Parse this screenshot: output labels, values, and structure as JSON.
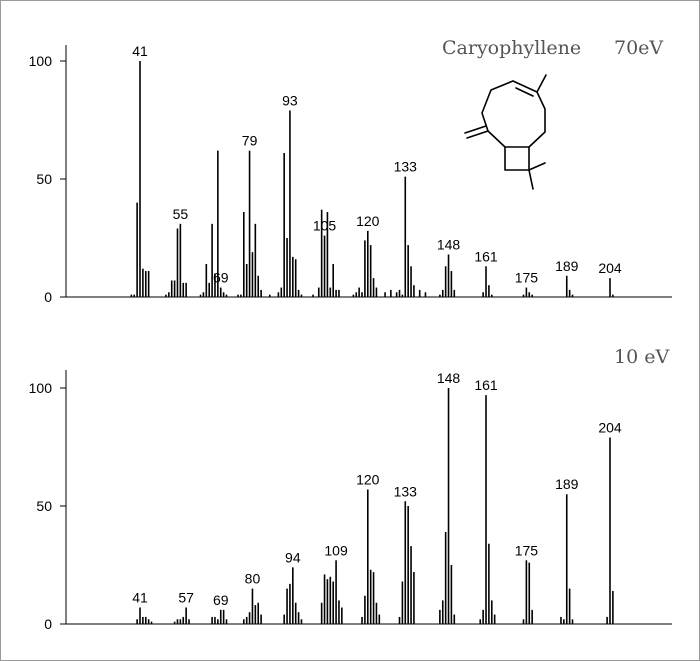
{
  "chart_data": [
    {
      "type": "bar",
      "title": "Caryophyllene",
      "subtitle": "70eV",
      "xlabel": "",
      "ylabel": "",
      "xlim": [
        20,
        212
      ],
      "ylim": [
        0,
        100
      ],
      "yticks": [
        0,
        50,
        100
      ],
      "grid": false,
      "labeled_peaks": [
        {
          "mz": 41,
          "label": "41"
        },
        {
          "mz": 55,
          "label": "55"
        },
        {
          "mz": 69,
          "label": "69"
        },
        {
          "mz": 79,
          "label": "79"
        },
        {
          "mz": 93,
          "label": "93"
        },
        {
          "mz": 105,
          "label": "105"
        },
        {
          "mz": 120,
          "label": "120"
        },
        {
          "mz": 133,
          "label": "133"
        },
        {
          "mz": 148,
          "label": "148"
        },
        {
          "mz": 161,
          "label": "161"
        },
        {
          "mz": 175,
          "label": "175"
        },
        {
          "mz": 189,
          "label": "189"
        },
        {
          "mz": 204,
          "label": "204"
        }
      ],
      "x": [
        38,
        39,
        40,
        41,
        42,
        43,
        44,
        50,
        51,
        52,
        53,
        54,
        55,
        56,
        57,
        62,
        63,
        64,
        65,
        66,
        67,
        68,
        69,
        70,
        71,
        75,
        76,
        77,
        78,
        79,
        80,
        81,
        82,
        83,
        86,
        89,
        90,
        91,
        92,
        93,
        94,
        95,
        96,
        97,
        101,
        103,
        104,
        105,
        106,
        107,
        108,
        109,
        110,
        115,
        116,
        117,
        118,
        119,
        120,
        121,
        122,
        123,
        126,
        128,
        130,
        131,
        132,
        133,
        134,
        135,
        136,
        138,
        140,
        145,
        146,
        147,
        148,
        149,
        150,
        160,
        161,
        162,
        163,
        174,
        175,
        176,
        177,
        189,
        190,
        191,
        204,
        205
      ],
      "y": [
        1,
        1,
        40,
        100,
        12,
        11,
        11,
        1,
        2,
        7,
        7,
        29,
        31,
        6,
        6,
        1,
        2,
        14,
        6,
        31,
        10,
        62,
        4,
        2,
        1,
        1,
        1,
        36,
        14,
        62,
        19,
        31,
        9,
        3,
        1,
        2,
        4,
        61,
        25,
        79,
        17,
        16,
        3,
        1,
        1,
        4,
        37,
        26,
        36,
        4,
        14,
        3,
        3,
        1,
        2,
        4,
        2,
        24,
        28,
        22,
        8,
        4,
        2,
        3,
        2,
        3,
        1,
        51,
        22,
        13,
        5,
        3,
        2,
        1,
        3,
        13,
        18,
        11,
        3,
        2,
        13,
        5,
        1,
        1,
        4,
        2,
        1,
        9,
        3,
        1,
        8,
        1
      ]
    },
    {
      "type": "bar",
      "title": "",
      "subtitle": "10 eV",
      "xlabel": "",
      "ylabel": "",
      "xlim": [
        20,
        212
      ],
      "ylim": [
        0,
        100
      ],
      "yticks": [
        0,
        50,
        100
      ],
      "grid": false,
      "labeled_peaks": [
        {
          "mz": 41,
          "label": "41"
        },
        {
          "mz": 57,
          "label": "57"
        },
        {
          "mz": 69,
          "label": "69"
        },
        {
          "mz": 80,
          "label": "80"
        },
        {
          "mz": 94,
          "label": "94"
        },
        {
          "mz": 109,
          "label": "109"
        },
        {
          "mz": 120,
          "label": "120"
        },
        {
          "mz": 133,
          "label": "133"
        },
        {
          "mz": 148,
          "label": "148"
        },
        {
          "mz": 161,
          "label": "161"
        },
        {
          "mz": 175,
          "label": "175"
        },
        {
          "mz": 189,
          "label": "189"
        },
        {
          "mz": 204,
          "label": "204"
        }
      ],
      "x": [
        40,
        41,
        42,
        43,
        44,
        45,
        53,
        54,
        55,
        56,
        57,
        58,
        66,
        67,
        68,
        69,
        70,
        71,
        77,
        78,
        79,
        80,
        81,
        82,
        83,
        91,
        92,
        93,
        94,
        95,
        96,
        97,
        104,
        105,
        106,
        107,
        108,
        109,
        110,
        111,
        118,
        119,
        120,
        121,
        122,
        123,
        124,
        131,
        132,
        133,
        134,
        135,
        136,
        145,
        146,
        147,
        148,
        149,
        150,
        159,
        160,
        161,
        162,
        163,
        164,
        174,
        175,
        176,
        177,
        187,
        188,
        189,
        190,
        191,
        203,
        204,
        205
      ],
      "y": [
        2,
        7,
        3,
        3,
        2,
        1,
        1,
        2,
        2,
        3,
        7,
        2,
        3,
        3,
        2,
        6,
        6,
        2,
        2,
        3,
        5,
        15,
        8,
        9,
        4,
        4,
        15,
        17,
        24,
        9,
        5,
        2,
        9,
        21,
        19,
        20,
        18,
        27,
        10,
        7,
        3,
        12,
        57,
        23,
        22,
        9,
        4,
        3,
        18,
        52,
        50,
        33,
        22,
        6,
        10,
        39,
        100,
        25,
        4,
        2,
        6,
        97,
        34,
        10,
        4,
        2,
        27,
        26,
        6,
        3,
        2,
        55,
        15,
        2,
        3,
        79,
        14
      ]
    }
  ]
}
